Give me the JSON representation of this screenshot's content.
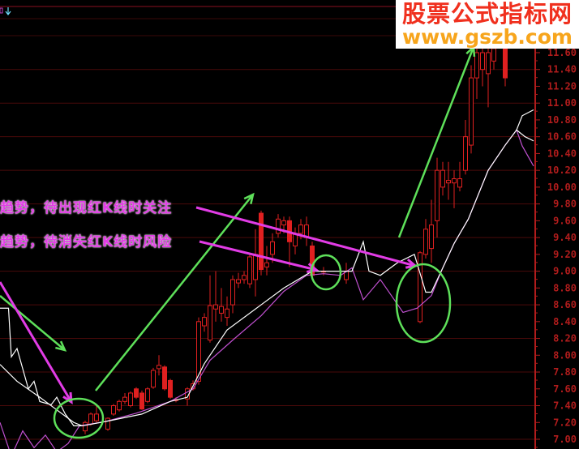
{
  "header": {
    "icons": [
      "formula-box-icon",
      "down-arrow-icon"
    ]
  },
  "watermark": {
    "title": "股票公式指标网",
    "url": "www.gszb.com"
  },
  "annotations": {
    "note_1": "趋势，待出现红K线时关注",
    "note_2": "趋势，待消失红K线时风险"
  },
  "colors": {
    "background": "#000000",
    "candle": "#e02020",
    "axis": "#b01c1c",
    "grid": "#4a0a0a",
    "ma_fast": "#ffffff",
    "ma_slow": "#c050d0",
    "arrow_green": "#5ee05a",
    "arrow_pink": "#e23ce6"
  },
  "chart_data": {
    "type": "candlestick",
    "ylim": [
      7.0,
      11.7
    ],
    "xlim": [
      0,
      94
    ],
    "grid": true,
    "y_ticks": [
      "11.60",
      "11.40",
      "11.20",
      "11.00",
      "10.80",
      "10.60",
      "10.40",
      "10.20",
      "10.00",
      "9.80",
      "9.60",
      "9.40",
      "9.20",
      "9.00",
      "8.80",
      "8.60",
      "8.40",
      "8.20",
      "8.00",
      "7.80",
      "7.60",
      "7.40",
      "7.20",
      "7.00"
    ],
    "candles": [
      {
        "i": 15,
        "o": 7.1,
        "h": 7.22,
        "l": 7.06,
        "c": 7.2
      },
      {
        "i": 16,
        "o": 7.18,
        "h": 7.32,
        "l": 7.16,
        "c": 7.3
      },
      {
        "i": 17,
        "o": 7.22,
        "h": 7.4,
        "l": 7.2,
        "c": 7.3
      },
      {
        "i": 19,
        "o": 7.12,
        "h": 7.26,
        "l": 7.1,
        "c": 7.25
      },
      {
        "i": 20,
        "o": 7.3,
        "h": 7.42,
        "l": 7.28,
        "c": 7.4
      },
      {
        "i": 21,
        "o": 7.35,
        "h": 7.47,
        "l": 7.33,
        "c": 7.45
      },
      {
        "i": 22,
        "o": 7.45,
        "h": 7.55,
        "l": 7.42,
        "c": 7.5
      },
      {
        "i": 23,
        "o": 7.4,
        "h": 7.57,
        "l": 7.38,
        "c": 7.55
      },
      {
        "i": 24,
        "o": 7.6,
        "h": 7.62,
        "l": 7.48,
        "c": 7.5
      },
      {
        "i": 25,
        "o": 7.55,
        "h": 7.58,
        "l": 7.35,
        "c": 7.36
      },
      {
        "i": 26,
        "o": 7.45,
        "h": 7.62,
        "l": 7.43,
        "c": 7.6
      },
      {
        "i": 27,
        "o": 7.62,
        "h": 7.85,
        "l": 7.6,
        "c": 7.82
      },
      {
        "i": 28,
        "o": 7.84,
        "h": 8.0,
        "l": 7.76,
        "c": 7.88
      },
      {
        "i": 29,
        "o": 7.86,
        "h": 7.88,
        "l": 7.58,
        "c": 7.6
      },
      {
        "i": 30,
        "o": 7.7,
        "h": 7.72,
        "l": 7.48,
        "c": 7.5
      },
      {
        "i": 31,
        "o": 7.47,
        "h": 7.5,
        "l": 7.44,
        "c": 7.47
      },
      {
        "i": 33,
        "o": 7.48,
        "h": 7.62,
        "l": 7.4,
        "c": 7.6
      },
      {
        "i": 34,
        "o": 7.6,
        "h": 7.7,
        "l": 7.58,
        "c": 7.66
      },
      {
        "i": 35,
        "o": 7.69,
        "h": 8.45,
        "l": 7.65,
        "c": 8.4
      },
      {
        "i": 36,
        "o": 8.35,
        "h": 8.5,
        "l": 8.28,
        "c": 8.45
      },
      {
        "i": 37,
        "o": 8.18,
        "h": 8.95,
        "l": 8.15,
        "c": 8.59
      },
      {
        "i": 38,
        "o": 8.55,
        "h": 9.0,
        "l": 8.4,
        "c": 8.6
      },
      {
        "i": 39,
        "o": 8.5,
        "h": 8.8,
        "l": 8.4,
        "c": 8.58
      },
      {
        "i": 40,
        "o": 8.45,
        "h": 8.7,
        "l": 8.35,
        "c": 8.55
      },
      {
        "i": 41,
        "o": 8.6,
        "h": 8.95,
        "l": 8.5,
        "c": 8.9
      },
      {
        "i": 42,
        "o": 8.86,
        "h": 8.98,
        "l": 8.8,
        "c": 8.9
      },
      {
        "i": 43,
        "o": 8.9,
        "h": 9.0,
        "l": 8.85,
        "c": 8.95
      },
      {
        "i": 44,
        "o": 8.85,
        "h": 9.22,
        "l": 8.8,
        "c": 9.17
      },
      {
        "i": 45,
        "o": 8.9,
        "h": 9.5,
        "l": 8.7,
        "c": 9.2
      },
      {
        "i": 46,
        "o": 9.69,
        "h": 9.72,
        "l": 8.95,
        "c": 9.02
      },
      {
        "i": 47,
        "o": 9.05,
        "h": 9.3,
        "l": 8.95,
        "c": 9.1
      },
      {
        "i": 48,
        "o": 9.2,
        "h": 9.45,
        "l": 9.1,
        "c": 9.35
      },
      {
        "i": 49,
        "o": 9.45,
        "h": 9.68,
        "l": 9.4,
        "c": 9.62
      },
      {
        "i": 50,
        "o": 9.55,
        "h": 9.65,
        "l": 9.45,
        "c": 9.6
      },
      {
        "i": 51,
        "o": 9.6,
        "h": 9.65,
        "l": 9.05,
        "c": 9.35
      },
      {
        "i": 52,
        "o": 9.3,
        "h": 9.52,
        "l": 9.2,
        "c": 9.45
      },
      {
        "i": 53,
        "o": 9.45,
        "h": 9.62,
        "l": 9.38,
        "c": 9.55
      },
      {
        "i": 54,
        "o": 9.4,
        "h": 9.65,
        "l": 9.3,
        "c": 9.55
      },
      {
        "i": 55,
        "o": 9.3,
        "h": 9.35,
        "l": 8.9,
        "c": 8.95
      },
      {
        "i": 57,
        "o": 9.0,
        "h": 9.05,
        "l": 8.95,
        "c": 9.0
      },
      {
        "i": 61,
        "o": 8.9,
        "h": 9.1,
        "l": 8.85,
        "c": 9.0
      },
      {
        "i": 74,
        "o": 8.4,
        "h": 9.24,
        "l": 8.38,
        "c": 9.22
      },
      {
        "i": 75,
        "o": 9.2,
        "h": 9.62,
        "l": 9.15,
        "c": 9.5
      },
      {
        "i": 76,
        "o": 9.27,
        "h": 9.85,
        "l": 9.1,
        "c": 9.55
      },
      {
        "i": 77,
        "o": 9.6,
        "h": 10.35,
        "l": 9.4,
        "c": 10.2
      },
      {
        "i": 78,
        "o": 10.0,
        "h": 10.3,
        "l": 9.9,
        "c": 10.2
      },
      {
        "i": 79,
        "o": 10.05,
        "h": 10.3,
        "l": 9.85,
        "c": 10.08
      },
      {
        "i": 80,
        "o": 10.05,
        "h": 10.2,
        "l": 9.75,
        "c": 10.1
      },
      {
        "i": 81,
        "o": 10.0,
        "h": 10.3,
        "l": 9.95,
        "c": 10.1
      },
      {
        "i": 82,
        "o": 10.2,
        "h": 10.8,
        "l": 10.15,
        "c": 10.6
      },
      {
        "i": 83,
        "o": 10.5,
        "h": 11.45,
        "l": 10.4,
        "c": 11.3
      },
      {
        "i": 84,
        "o": 11.3,
        "h": 11.65,
        "l": 11.05,
        "c": 11.6
      },
      {
        "i": 85,
        "o": 11.4,
        "h": 11.65,
        "l": 11.2,
        "c": 11.6
      },
      {
        "i": 86,
        "o": 11.35,
        "h": 11.65,
        "l": 10.95,
        "c": 11.6
      },
      {
        "i": 87,
        "o": 11.5,
        "h": 11.7,
        "l": 11.4,
        "c": 11.65
      },
      {
        "i": 89,
        "o": 11.65,
        "h": 11.7,
        "l": 11.2,
        "c": 11.3
      }
    ],
    "ma_fast": [
      [
        0,
        8.56
      ],
      [
        1.5,
        8.56
      ],
      [
        2,
        7.98
      ],
      [
        3,
        8.08
      ],
      [
        5,
        7.6
      ],
      [
        6,
        7.69
      ],
      [
        7,
        7.45
      ],
      [
        9,
        7.41
      ],
      [
        10,
        7.5
      ],
      [
        11.5,
        7.3
      ],
      [
        13,
        7.16
      ],
      [
        14.5,
        7.16
      ],
      [
        18.5,
        7.21
      ],
      [
        25,
        7.3
      ],
      [
        30,
        7.45
      ],
      [
        33,
        7.5
      ],
      [
        36,
        7.9
      ],
      [
        40,
        8.3
      ],
      [
        46,
        8.6
      ],
      [
        50,
        8.8
      ],
      [
        55,
        9.0
      ],
      [
        60,
        9.0
      ],
      [
        62,
        9.0
      ],
      [
        64,
        9.35
      ],
      [
        65,
        9.0
      ],
      [
        67,
        8.95
      ],
      [
        70,
        9.1
      ],
      [
        73,
        9.2
      ],
      [
        75,
        8.75
      ],
      [
        76,
        8.75
      ],
      [
        78,
        9.04
      ],
      [
        80,
        9.33
      ],
      [
        82.5,
        9.62
      ],
      [
        86,
        10.2
      ],
      [
        89,
        10.5
      ],
      [
        91,
        10.68
      ],
      [
        92,
        10.85
      ],
      [
        94,
        10.92
      ]
    ],
    "ma_fast_2": [
      [
        0,
        7.89
      ],
      [
        3,
        7.69
      ],
      [
        7,
        7.5
      ],
      [
        10,
        7.35
      ],
      [
        13,
        7.2
      ],
      [
        14.5,
        7.16
      ]
    ],
    "ma_fast_3": [
      [
        91,
        10.68
      ],
      [
        92.5,
        10.6
      ],
      [
        94,
        10.55
      ]
    ],
    "ma_slow": [
      [
        0,
        7.2
      ],
      [
        2,
        6.8
      ],
      [
        4,
        7.1
      ],
      [
        6,
        6.9
      ],
      [
        8,
        7.05
      ],
      [
        10,
        6.85
      ],
      [
        12,
        6.95
      ],
      [
        14,
        7.16
      ],
      [
        18.5,
        7.21
      ],
      [
        24,
        7.31
      ],
      [
        30,
        7.45
      ],
      [
        34,
        7.6
      ],
      [
        37,
        7.94
      ],
      [
        41,
        8.18
      ],
      [
        46,
        8.47
      ],
      [
        50,
        8.76
      ],
      [
        54,
        8.95
      ],
      [
        57,
        8.97
      ],
      [
        60,
        8.95
      ],
      [
        62,
        9.04
      ],
      [
        64,
        8.66
      ],
      [
        67,
        8.9
      ],
      [
        71,
        8.51
      ],
      [
        73.5,
        8.56
      ],
      [
        76,
        8.71
      ],
      [
        78,
        9.04
      ],
      [
        80,
        9.33
      ],
      [
        82.5,
        9.62
      ],
      [
        86,
        10.2
      ],
      [
        89,
        10.5
      ],
      [
        91,
        10.68
      ],
      [
        92,
        10.49
      ],
      [
        94,
        10.25
      ]
    ]
  }
}
